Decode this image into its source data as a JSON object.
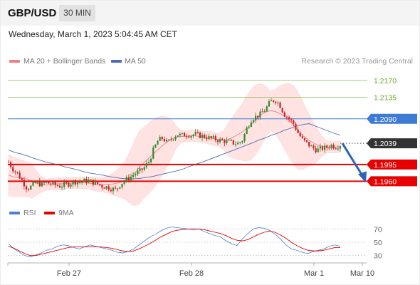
{
  "header": {
    "pair": "GBP/USD",
    "timeframe": "30 MIN"
  },
  "timestamp": "Wednesday, March 1, 2023 5:04:45 AM CET",
  "credit": "Research © 2023 Trading Central",
  "legend_top": {
    "ma20": "MA 20 + Bollinger Bands",
    "ma50": "MA 50"
  },
  "legend_bottom": {
    "rsi": "RSI",
    "ma9": "9MA"
  },
  "colors": {
    "green": "#66aa22",
    "blue": "#3d7bd6",
    "red": "#e60000",
    "black": "#333333",
    "candle_up": "#2e8b2e",
    "candle_down": "#cc1f1f",
    "band": "#ffdede",
    "ma20": "#f08080",
    "ma50": "#4a6fb3",
    "arrow": "#2d65b5",
    "rsi": "#4a7fd4"
  },
  "chart_data": [
    {
      "type": "candlestick",
      "ylim": [
        1.1925,
        1.2195
      ],
      "x_labels": [
        "Feb 27",
        "Feb 28",
        "Mar 1",
        "Mar 10"
      ],
      "series": [
        {
          "name": "MA 20 + Bollinger Bands"
        },
        {
          "name": "MA 50"
        }
      ],
      "levels": [
        {
          "value": 1.217,
          "label": "1.2170",
          "color": "green",
          "style": "thin"
        },
        {
          "value": 1.2135,
          "label": "1.2135",
          "color": "green",
          "style": "thin"
        },
        {
          "value": 1.209,
          "label": "1.2090",
          "color": "blue",
          "style": "thin",
          "tag": true
        },
        {
          "value": 1.2039,
          "label": "1.2039",
          "color": "black",
          "style": "dotted",
          "tag": true
        },
        {
          "value": 1.1995,
          "label": "1.1995",
          "color": "red",
          "style": "thick",
          "tag": true
        },
        {
          "value": 1.196,
          "label": "1.1960",
          "color": "red",
          "style": "thick",
          "tag": true
        }
      ],
      "last_price": 1.2039,
      "forecast": {
        "from": 1.2039,
        "to": 1.196,
        "direction": "down"
      },
      "close_path": [
        1.2,
        1.1985,
        1.1975,
        1.196,
        1.1945,
        1.195,
        1.1958,
        1.1953,
        1.1957,
        1.1955,
        1.1952,
        1.195,
        1.1953,
        1.1955,
        1.196,
        1.1958,
        1.196,
        1.1962,
        1.1958,
        1.1955,
        1.195,
        1.1948,
        1.1945,
        1.1942,
        1.1955,
        1.1962,
        1.1968,
        1.1975,
        1.198,
        1.1988,
        1.2,
        1.2025,
        1.2045,
        1.205,
        1.204,
        1.205,
        1.2058,
        1.2055,
        1.2058,
        1.2056,
        1.2058,
        1.2055,
        1.2053,
        1.205,
        1.2048,
        1.2046,
        1.2044,
        1.2042,
        1.204,
        1.2038,
        1.2045,
        1.207,
        1.209,
        1.2095,
        1.21,
        1.211,
        1.2125,
        1.213,
        1.212,
        1.21,
        1.209,
        1.208,
        1.206,
        1.2045,
        1.2038,
        1.203,
        1.2025,
        1.2028,
        1.203,
        1.2035,
        1.2032,
        1.2036
      ],
      "ma50_path": [
        1.2025,
        1.202,
        1.2017,
        1.2013,
        1.2008,
        1.2004,
        1.2,
        1.1997,
        1.1994,
        1.199,
        1.1987,
        1.1984,
        1.198,
        1.1977,
        1.1975,
        1.1973,
        1.197,
        1.1968,
        1.1966,
        1.1965,
        1.1965,
        1.1966,
        1.1968,
        1.197,
        1.1973,
        1.1976,
        1.1979,
        1.1982,
        1.1986,
        1.1991,
        1.1996,
        1.2,
        1.2005,
        1.201,
        1.2015,
        1.202,
        1.2025,
        1.203,
        1.2035,
        1.204,
        1.2046,
        1.205,
        1.2056,
        1.206,
        1.2066,
        1.207,
        1.2075,
        1.2078,
        1.208,
        1.2075,
        1.207,
        1.2065,
        1.206,
        1.2056
      ]
    },
    {
      "type": "line",
      "ylim": [
        20,
        80
      ],
      "y_ticks": [
        30,
        50,
        70
      ],
      "series": [
        {
          "name": "RSI",
          "values": [
            48,
            40,
            35,
            30,
            28,
            31,
            34,
            38,
            40,
            44,
            46,
            45,
            42,
            40,
            43,
            46,
            44,
            42,
            40,
            38,
            35,
            34,
            36,
            40,
            46,
            52,
            58,
            62,
            67,
            71,
            73,
            72,
            71,
            70,
            69,
            70,
            66,
            63,
            60,
            58,
            52,
            48,
            45,
            55,
            63,
            70,
            72,
            71,
            68,
            62,
            55,
            46,
            40,
            38,
            35,
            33,
            36,
            38,
            40,
            44,
            46,
            44
          ]
        },
        {
          "name": "9MA",
          "values": [
            44,
            41,
            37,
            33,
            30,
            30,
            32,
            34,
            36,
            38,
            40,
            42,
            43,
            43,
            43,
            43,
            43,
            43,
            42,
            41,
            39,
            37,
            36,
            37,
            40,
            44,
            48,
            53,
            58,
            62,
            66,
            68,
            69,
            70,
            70,
            70,
            69,
            67,
            65,
            63,
            60,
            56,
            53,
            52,
            54,
            58,
            62,
            65,
            67,
            65,
            61,
            56,
            50,
            45,
            41,
            38,
            37,
            37,
            38,
            40,
            42,
            42
          ]
        }
      ]
    }
  ]
}
